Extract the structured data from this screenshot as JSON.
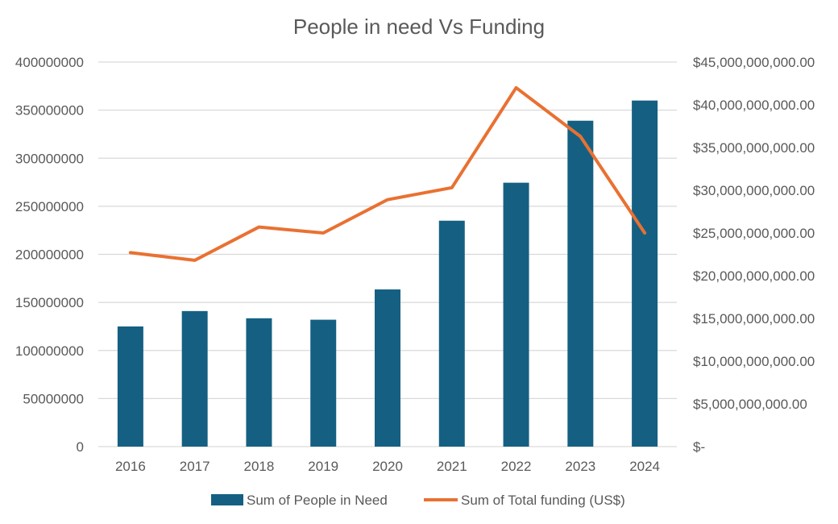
{
  "chart_data": {
    "type": "bar",
    "title": "People in need Vs Funding",
    "categories": [
      "2016",
      "2017",
      "2018",
      "2019",
      "2020",
      "2021",
      "2022",
      "2023",
      "2024"
    ],
    "series": [
      {
        "name": "Sum of People in Need",
        "type": "bar",
        "axis": "left",
        "color": "#156082",
        "values": [
          125000000,
          141000000,
          133500000,
          132000000,
          163500000,
          235000000,
          274500000,
          339000000,
          360000000
        ]
      },
      {
        "name": "Sum of Total funding (US$)",
        "type": "line",
        "axis": "right",
        "color": "#E97132",
        "values": [
          22700000000,
          21800000000,
          25700000000,
          25000000000,
          28900000000,
          30300000000,
          42000000000,
          36300000000,
          25000000000
        ]
      }
    ],
    "y_left": {
      "ylim": [
        0,
        400000000
      ],
      "ticks": [
        "0",
        "50000000",
        "100000000",
        "150000000",
        "200000000",
        "250000000",
        "300000000",
        "350000000",
        "400000000"
      ]
    },
    "y_right": {
      "ylim": [
        0,
        45000000000
      ],
      "ticks": [
        "$-",
        "$5,000,000,000.00",
        "$10,000,000,000.00",
        "$15,000,000,000.00",
        "$20,000,000,000.00",
        "$25,000,000,000.00",
        "$30,000,000,000.00",
        "$35,000,000,000.00",
        "$40,000,000,000.00",
        "$45,000,000,000.00"
      ]
    },
    "grid": true,
    "legend_position": "bottom"
  }
}
